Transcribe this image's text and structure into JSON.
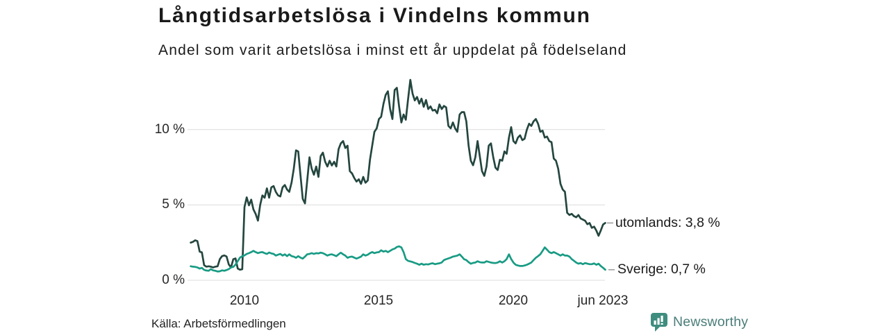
{
  "header": {
    "title": "Långtidsarbetslösa i Vindelns kommun",
    "subtitle": "Andel som varit arbetslösa i minst ett år uppdelat på födelseland"
  },
  "footer": {
    "source": "Källa: Arbetsförmedlingen",
    "brand": "Newsworthy"
  },
  "chart_data": {
    "type": "line",
    "title": "Långtidsarbetslösa i Vindelns kommun",
    "subtitle": "Andel som varit arbetslösa i minst ett år uppdelat på födelseland",
    "x_start": "2008-01",
    "x_end": "2023-06",
    "frequency": "monthly",
    "ylim": [
      0,
      13.8
    ],
    "grid": "horizontal-y",
    "yticks": [
      {
        "value": 0,
        "label": "0 %"
      },
      {
        "value": 5,
        "label": "5 %"
      },
      {
        "value": 10,
        "label": "10 %"
      }
    ],
    "xticks": [
      {
        "label": "2010"
      },
      {
        "label": "2015"
      },
      {
        "label": "2020"
      },
      {
        "label": "jun 2023"
      }
    ],
    "series": [
      {
        "name": "utomlands",
        "color": "#24463f",
        "end_label": "utomlands: 3,8 %",
        "end_value": "3,8 %",
        "values": [
          2.5,
          2.55,
          2.65,
          2.6,
          1.9,
          1.85,
          1.0,
          0.9,
          0.93,
          0.9,
          0.85,
          0.9,
          0.93,
          1.4,
          1.6,
          1.65,
          1.58,
          1.05,
          0.85,
          1.4,
          1.45,
          0.78,
          0.7,
          0.73,
          4.85,
          5.5,
          4.97,
          5.35,
          4.7,
          4.4,
          3.96,
          5.0,
          5.63,
          5.48,
          6.1,
          5.48,
          6.17,
          6.25,
          5.86,
          5.63,
          5.56,
          6.17,
          6.32,
          6.02,
          5.87,
          6.48,
          7.4,
          8.62,
          8.55,
          6.94,
          5.4,
          5.1,
          6.6,
          8.16,
          7.4,
          7.0,
          7.55,
          6.86,
          8.24,
          8.47,
          7.86,
          7.55,
          7.93,
          7.62,
          7.86,
          7.55,
          8.7,
          9.08,
          9.24,
          8.78,
          8.93,
          7.24,
          7.09,
          6.78,
          6.55,
          6.7,
          6.4,
          6.86,
          6.47,
          6.62,
          8.0,
          8.93,
          9.85,
          10.08,
          10.7,
          10.85,
          11.7,
          12.3,
          12.54,
          11.36,
          10.7,
          12.62,
          12.77,
          11.54,
          10.47,
          11.0,
          10.65,
          12.0,
          13.3,
          12.39,
          11.93,
          12.16,
          11.72,
          12.05,
          11.51,
          11.96,
          11.36,
          11.54,
          11.26,
          11.31,
          11.08,
          11.67,
          11.36,
          11.57,
          11.47,
          10.24,
          10.08,
          10.47,
          10.08,
          9.85,
          11.0,
          11.16,
          11.16,
          10.55,
          8.93,
          7.93,
          7.63,
          8.16,
          9.24,
          8.24,
          7.24,
          6.93,
          7.55,
          8.93,
          9.08,
          8.16,
          7.47,
          7.32,
          8.0,
          7.93,
          8.55,
          8.39,
          9.47,
          10.16,
          9.24,
          9.08,
          9.47,
          9.62,
          9.3,
          9.39,
          10.0,
          10.39,
          10.24,
          10.54,
          10.7,
          10.39,
          9.85,
          9.93,
          9.47,
          9.54,
          9.24,
          9.16,
          8.08,
          7.93,
          7.4,
          6.4,
          6.02,
          5.87,
          4.48,
          4.33,
          4.41,
          4.26,
          4.18,
          4.33,
          4.1,
          4.03,
          3.95,
          3.72,
          3.8,
          3.48,
          3.56,
          3.3,
          2.95,
          3.3,
          3.7,
          3.8
        ]
      },
      {
        "name": "Sverige",
        "color": "#189b84",
        "end_label": "Sverige: 0,7 %",
        "end_value": "0,7 %",
        "values": [
          0.93,
          0.9,
          0.89,
          0.85,
          0.78,
          0.82,
          0.69,
          0.65,
          0.63,
          0.74,
          0.66,
          0.63,
          0.58,
          0.6,
          0.66,
          0.63,
          0.68,
          0.74,
          0.85,
          0.89,
          1.04,
          1.27,
          1.5,
          1.6,
          1.65,
          1.75,
          1.8,
          1.87,
          1.95,
          1.87,
          1.8,
          1.85,
          1.87,
          1.8,
          1.75,
          1.84,
          1.78,
          1.75,
          1.64,
          1.7,
          1.75,
          1.64,
          1.72,
          1.6,
          1.72,
          1.6,
          1.57,
          1.49,
          1.6,
          1.5,
          1.44,
          1.57,
          1.72,
          1.75,
          1.8,
          1.75,
          1.8,
          1.78,
          1.83,
          1.8,
          1.72,
          1.64,
          1.7,
          1.72,
          1.66,
          1.6,
          1.72,
          1.83,
          1.72,
          1.64,
          1.49,
          1.55,
          1.57,
          1.5,
          1.44,
          1.5,
          1.57,
          1.72,
          1.64,
          1.7,
          1.8,
          1.87,
          1.8,
          1.85,
          1.87,
          1.99,
          1.9,
          1.95,
          1.87,
          1.95,
          2.05,
          2.1,
          2.21,
          2.25,
          2.18,
          1.87,
          1.41,
          1.29,
          1.25,
          1.21,
          1.15,
          1.1,
          1.03,
          1.1,
          1.03,
          1.07,
          1.05,
          1.1,
          1.13,
          1.07,
          1.1,
          1.13,
          1.18,
          1.34,
          1.4,
          1.45,
          1.5,
          1.57,
          1.6,
          1.64,
          1.72,
          1.57,
          1.4,
          1.34,
          1.2,
          1.1,
          1.15,
          1.18,
          1.26,
          1.2,
          1.18,
          1.18,
          1.26,
          1.22,
          1.18,
          1.15,
          1.14,
          1.18,
          1.26,
          1.18,
          1.26,
          1.41,
          1.72,
          1.41,
          1.18,
          1.03,
          0.98,
          0.95,
          0.95,
          0.98,
          1.03,
          1.1,
          1.18,
          1.34,
          1.49,
          1.6,
          1.72,
          1.95,
          2.18,
          2.03,
          1.87,
          1.8,
          1.87,
          1.8,
          1.72,
          1.64,
          1.72,
          1.64,
          1.64,
          1.57,
          1.41,
          1.3,
          1.18,
          1.1,
          1.14,
          1.07,
          1.14,
          1.1,
          1.07,
          1.07,
          1.12,
          1.03,
          1.1,
          0.95,
          0.83,
          0.7
        ]
      }
    ]
  }
}
